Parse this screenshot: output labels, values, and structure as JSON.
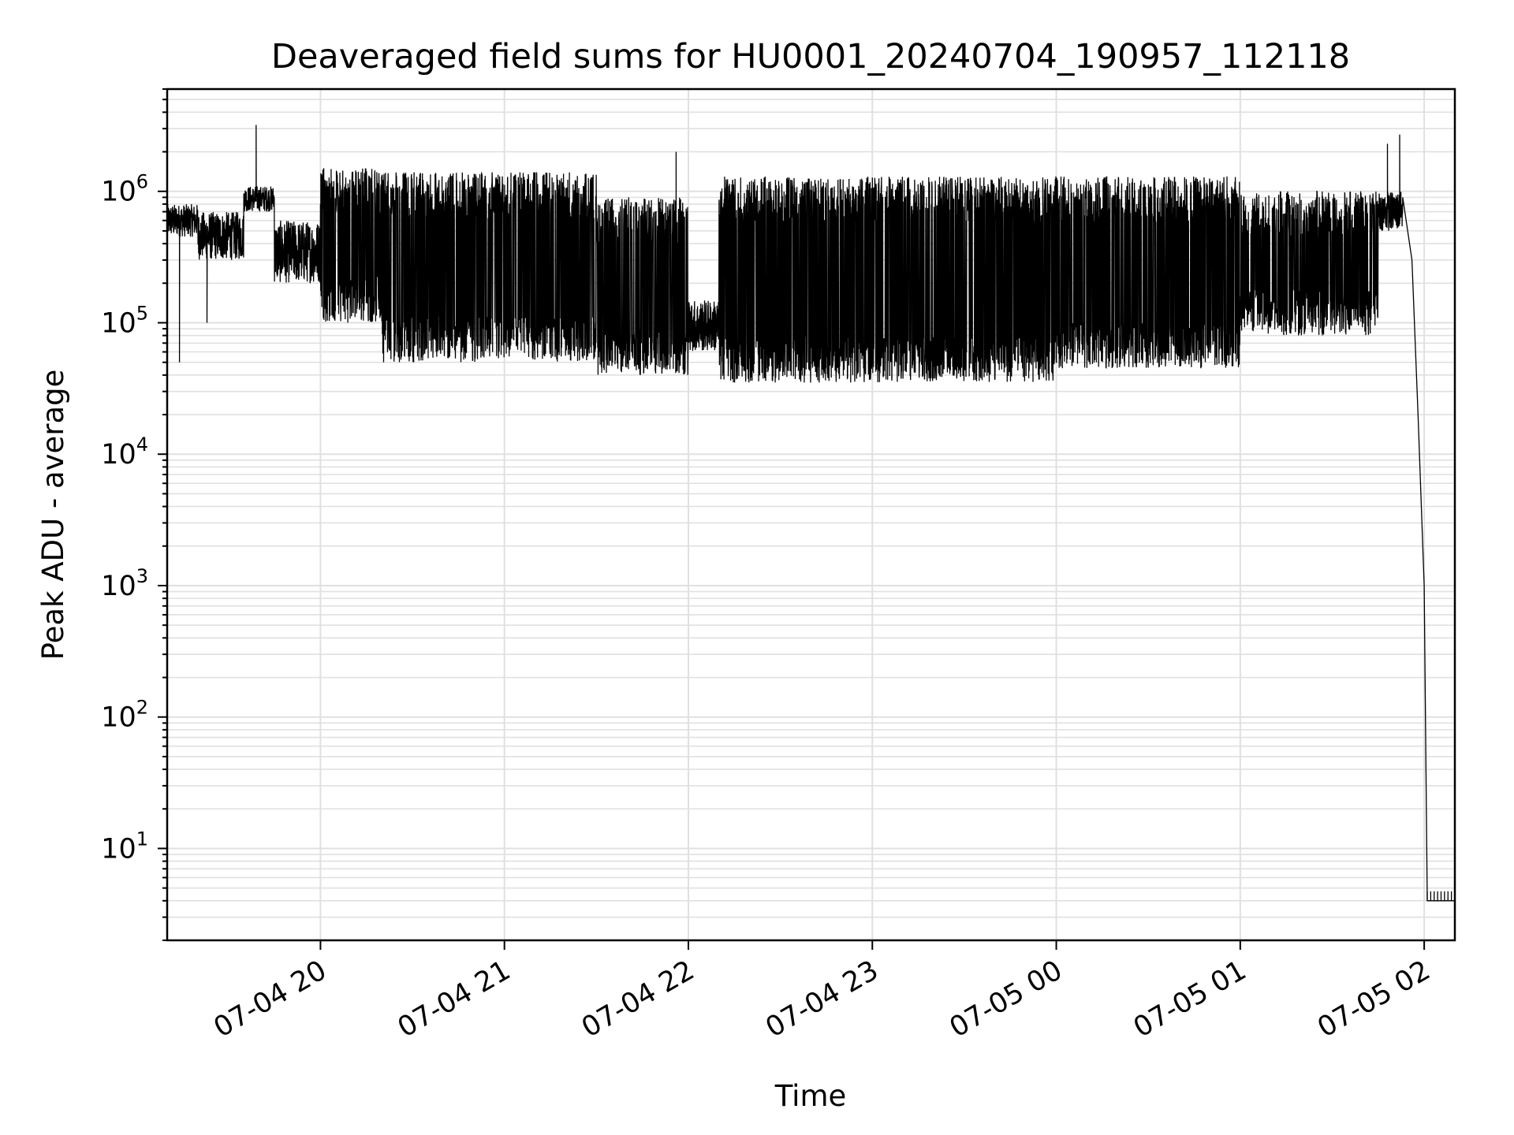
{
  "chart_data": {
    "type": "line",
    "title": "Deaveraged field sums for HU0001_20240704_190957_112118",
    "xlabel": "Time",
    "ylabel": "Peak ADU - average",
    "yscale": "log",
    "ylim": [
      2,
      6000000
    ],
    "xlim": [
      "07-04 19:10",
      "07-05 02:10"
    ],
    "grid": true,
    "line_color": "#000000",
    "grid_color": "#e0e0e0",
    "x_tick_labels": [
      "07-04 20",
      "07-04 21",
      "07-04 22",
      "07-04 23",
      "07-05 00",
      "07-05 01",
      "07-05 02"
    ],
    "y_tick_labels": [
      {
        "base": "10",
        "exp": "1",
        "value": 10
      },
      {
        "base": "10",
        "exp": "2",
        "value": 100
      },
      {
        "base": "10",
        "exp": "3",
        "value": 1000
      },
      {
        "base": "10",
        "exp": "4",
        "value": 10000
      },
      {
        "base": "10",
        "exp": "5",
        "value": 100000
      },
      {
        "base": "10",
        "exp": "6",
        "value": 1000000
      }
    ],
    "series": [
      {
        "baseline_segments": [
          {
            "from": "07-04 19:10",
            "to": "07-04 19:20",
            "low": 450000,
            "high": 800000
          },
          {
            "from": "07-04 19:20",
            "to": "07-04 19:35",
            "low": 300000,
            "high": 700000
          },
          {
            "from": "07-04 19:35",
            "to": "07-04 19:45",
            "low": 700000,
            "high": 1100000
          },
          {
            "from": "07-04 19:45",
            "to": "07-04 20:00",
            "low": 200000,
            "high": 600000
          },
          {
            "from": "07-04 20:00",
            "to": "07-04 20:20",
            "low": 100000,
            "high": 1500000
          },
          {
            "from": "07-04 20:20",
            "to": "07-04 21:30",
            "low": 50000,
            "high": 1400000
          },
          {
            "from": "07-04 21:30",
            "to": "07-04 22:00",
            "low": 40000,
            "high": 900000
          },
          {
            "from": "07-04 22:00",
            "to": "07-04 22:10",
            "low": 60000,
            "high": 150000
          },
          {
            "from": "07-04 22:10",
            "to": "07-04 23:00",
            "low": 35000,
            "high": 1300000
          },
          {
            "from": "07-04 23:00",
            "to": "07-05 00:00",
            "low": 35000,
            "high": 1300000
          },
          {
            "from": "07-05 00:00",
            "to": "07-05 01:00",
            "low": 45000,
            "high": 1300000
          },
          {
            "from": "07-05 01:00",
            "to": "07-05 01:45",
            "low": 80000,
            "high": 1000000
          },
          {
            "from": "07-05 01:45",
            "to": "07-05 01:53",
            "low": 500000,
            "high": 1000000
          }
        ],
        "spikes": [
          {
            "t": "07-04 19:39",
            "value": 3200000
          },
          {
            "t": "07-04 21:56",
            "value": 2000000
          },
          {
            "t": "07-05 01:48",
            "value": 2300000
          },
          {
            "t": "07-05 01:52",
            "value": 2700000
          },
          {
            "t": "07-04 19:14",
            "value": 50000
          },
          {
            "t": "07-04 19:23",
            "value": 100000
          }
        ],
        "tail": [
          {
            "t": "07-05 01:53",
            "value": 900000
          },
          {
            "t": "07-05 01:56",
            "value": 300000
          },
          {
            "t": "07-05 01:58",
            "value": 20000
          },
          {
            "t": "07-05 02:00",
            "value": 1000
          },
          {
            "t": "07-05 02:01",
            "value": 4
          },
          {
            "t": "07-05 02:10",
            "value": 4
          }
        ]
      }
    ]
  }
}
